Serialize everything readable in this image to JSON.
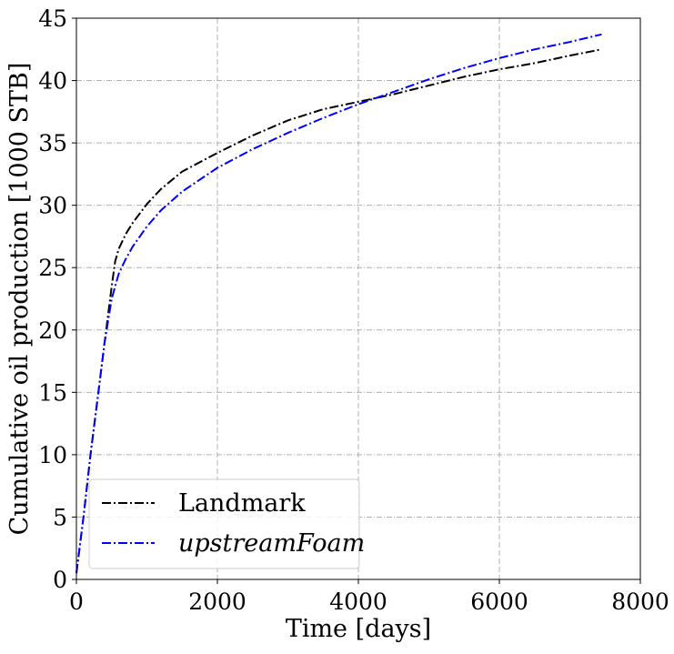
{
  "chart_data": {
    "type": "line",
    "xlabel": "Time [days]",
    "ylabel": "Cumulative oil production [1000 STB]",
    "xlim": [
      0,
      8000
    ],
    "ylim": [
      0,
      45
    ],
    "xticks": [
      0,
      2000,
      4000,
      6000,
      8000
    ],
    "yticks": [
      0,
      5,
      10,
      15,
      20,
      25,
      30,
      35,
      40,
      45
    ],
    "xtick_labels": [
      "0",
      "2000",
      "4000",
      "6000",
      "8000"
    ],
    "ytick_labels": [
      "0",
      "5",
      "10",
      "15",
      "20",
      "25",
      "30",
      "35",
      "40",
      "45"
    ],
    "grid": true,
    "legend_position": "lower-left",
    "series": [
      {
        "name": "Landmark",
        "color": "#000000",
        "style": "dashdot",
        "x": [
          0,
          100,
          200,
          300,
          400,
          500,
          550,
          600,
          700,
          800,
          1000,
          1200,
          1500,
          2000,
          2500,
          3000,
          3500,
          4000,
          4500,
          5000,
          5500,
          6000,
          6500,
          7000,
          7450
        ],
        "y": [
          0.5,
          5,
          10,
          14.5,
          19,
          23.5,
          25.5,
          26.5,
          27.7,
          28.6,
          30.1,
          31.3,
          32.7,
          34.2,
          35.6,
          36.8,
          37.7,
          38.3,
          38.9,
          39.6,
          40.3,
          40.9,
          41.4,
          42.0,
          42.5
        ]
      },
      {
        "name": "upstreamFoam",
        "color": "#0000ff",
        "style": "dashdot",
        "x": [
          0,
          100,
          200,
          300,
          400,
          500,
          550,
          600,
          700,
          800,
          1000,
          1200,
          1500,
          2000,
          2500,
          3000,
          3500,
          4000,
          4500,
          5000,
          5500,
          6000,
          6500,
          7000,
          7450
        ],
        "y": [
          0.5,
          5,
          10,
          14.5,
          19,
          22.5,
          23.5,
          24.5,
          25.7,
          26.7,
          28.3,
          29.6,
          31.1,
          33.0,
          34.5,
          35.8,
          37.0,
          38.1,
          39.1,
          40.1,
          41.0,
          41.8,
          42.5,
          43.1,
          43.7
        ]
      }
    ]
  }
}
